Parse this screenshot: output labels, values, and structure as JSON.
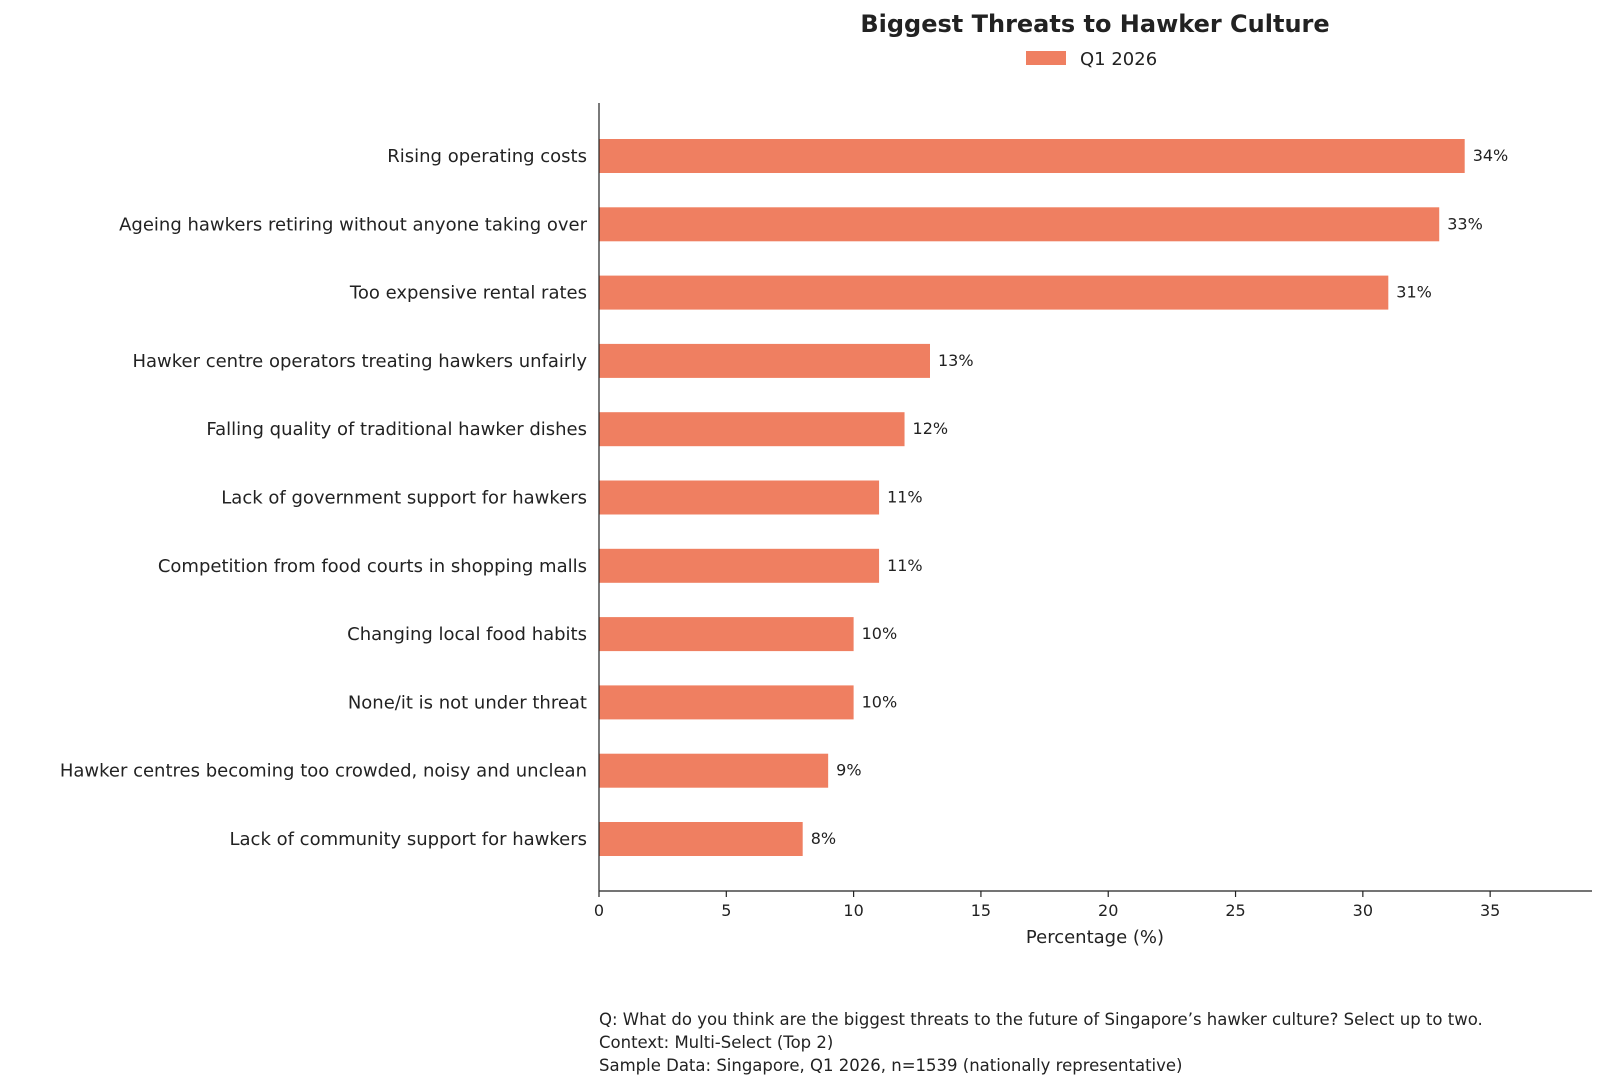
{
  "chart_data": {
    "type": "bar",
    "orientation": "horizontal",
    "title": "Biggest Threats to Hawker Culture",
    "xlabel": "Percentage (%)",
    "ylabel": "",
    "xlim": [
      0,
      39
    ],
    "xticks": [
      0,
      5,
      10,
      15,
      20,
      25,
      30,
      35
    ],
    "grid": false,
    "legend_position": "top-center",
    "bar_color": "#ef7f61",
    "categories": [
      "Rising operating costs",
      "Ageing hawkers retiring without anyone taking over",
      "Too expensive rental rates",
      "Hawker centre operators treating hawkers unfairly",
      "Falling quality of traditional hawker dishes",
      "Lack of government support for hawkers",
      "Competition from food courts in shopping malls",
      "Changing local food habits",
      "None/it is not under threat",
      "Hawker centres becoming too crowded, noisy and unclean",
      "Lack of community support for hawkers"
    ],
    "series": [
      {
        "name": "Q1 2026",
        "values": [
          34,
          33,
          31,
          13,
          12,
          11,
          11,
          10,
          10,
          9,
          8
        ],
        "labels": [
          "34%",
          "33%",
          "31%",
          "13%",
          "12%",
          "11%",
          "11%",
          "10%",
          "10%",
          "9%",
          "8%"
        ]
      }
    ]
  },
  "footnotes": {
    "question": "Q: What do you think are the biggest threats to the future of Singapore’s hawker culture? Select up to two.",
    "context": "Context: Multi-Select (Top 2)",
    "sample": "Sample Data: Singapore, Q1 2026, n=1539 (nationally representative)"
  }
}
